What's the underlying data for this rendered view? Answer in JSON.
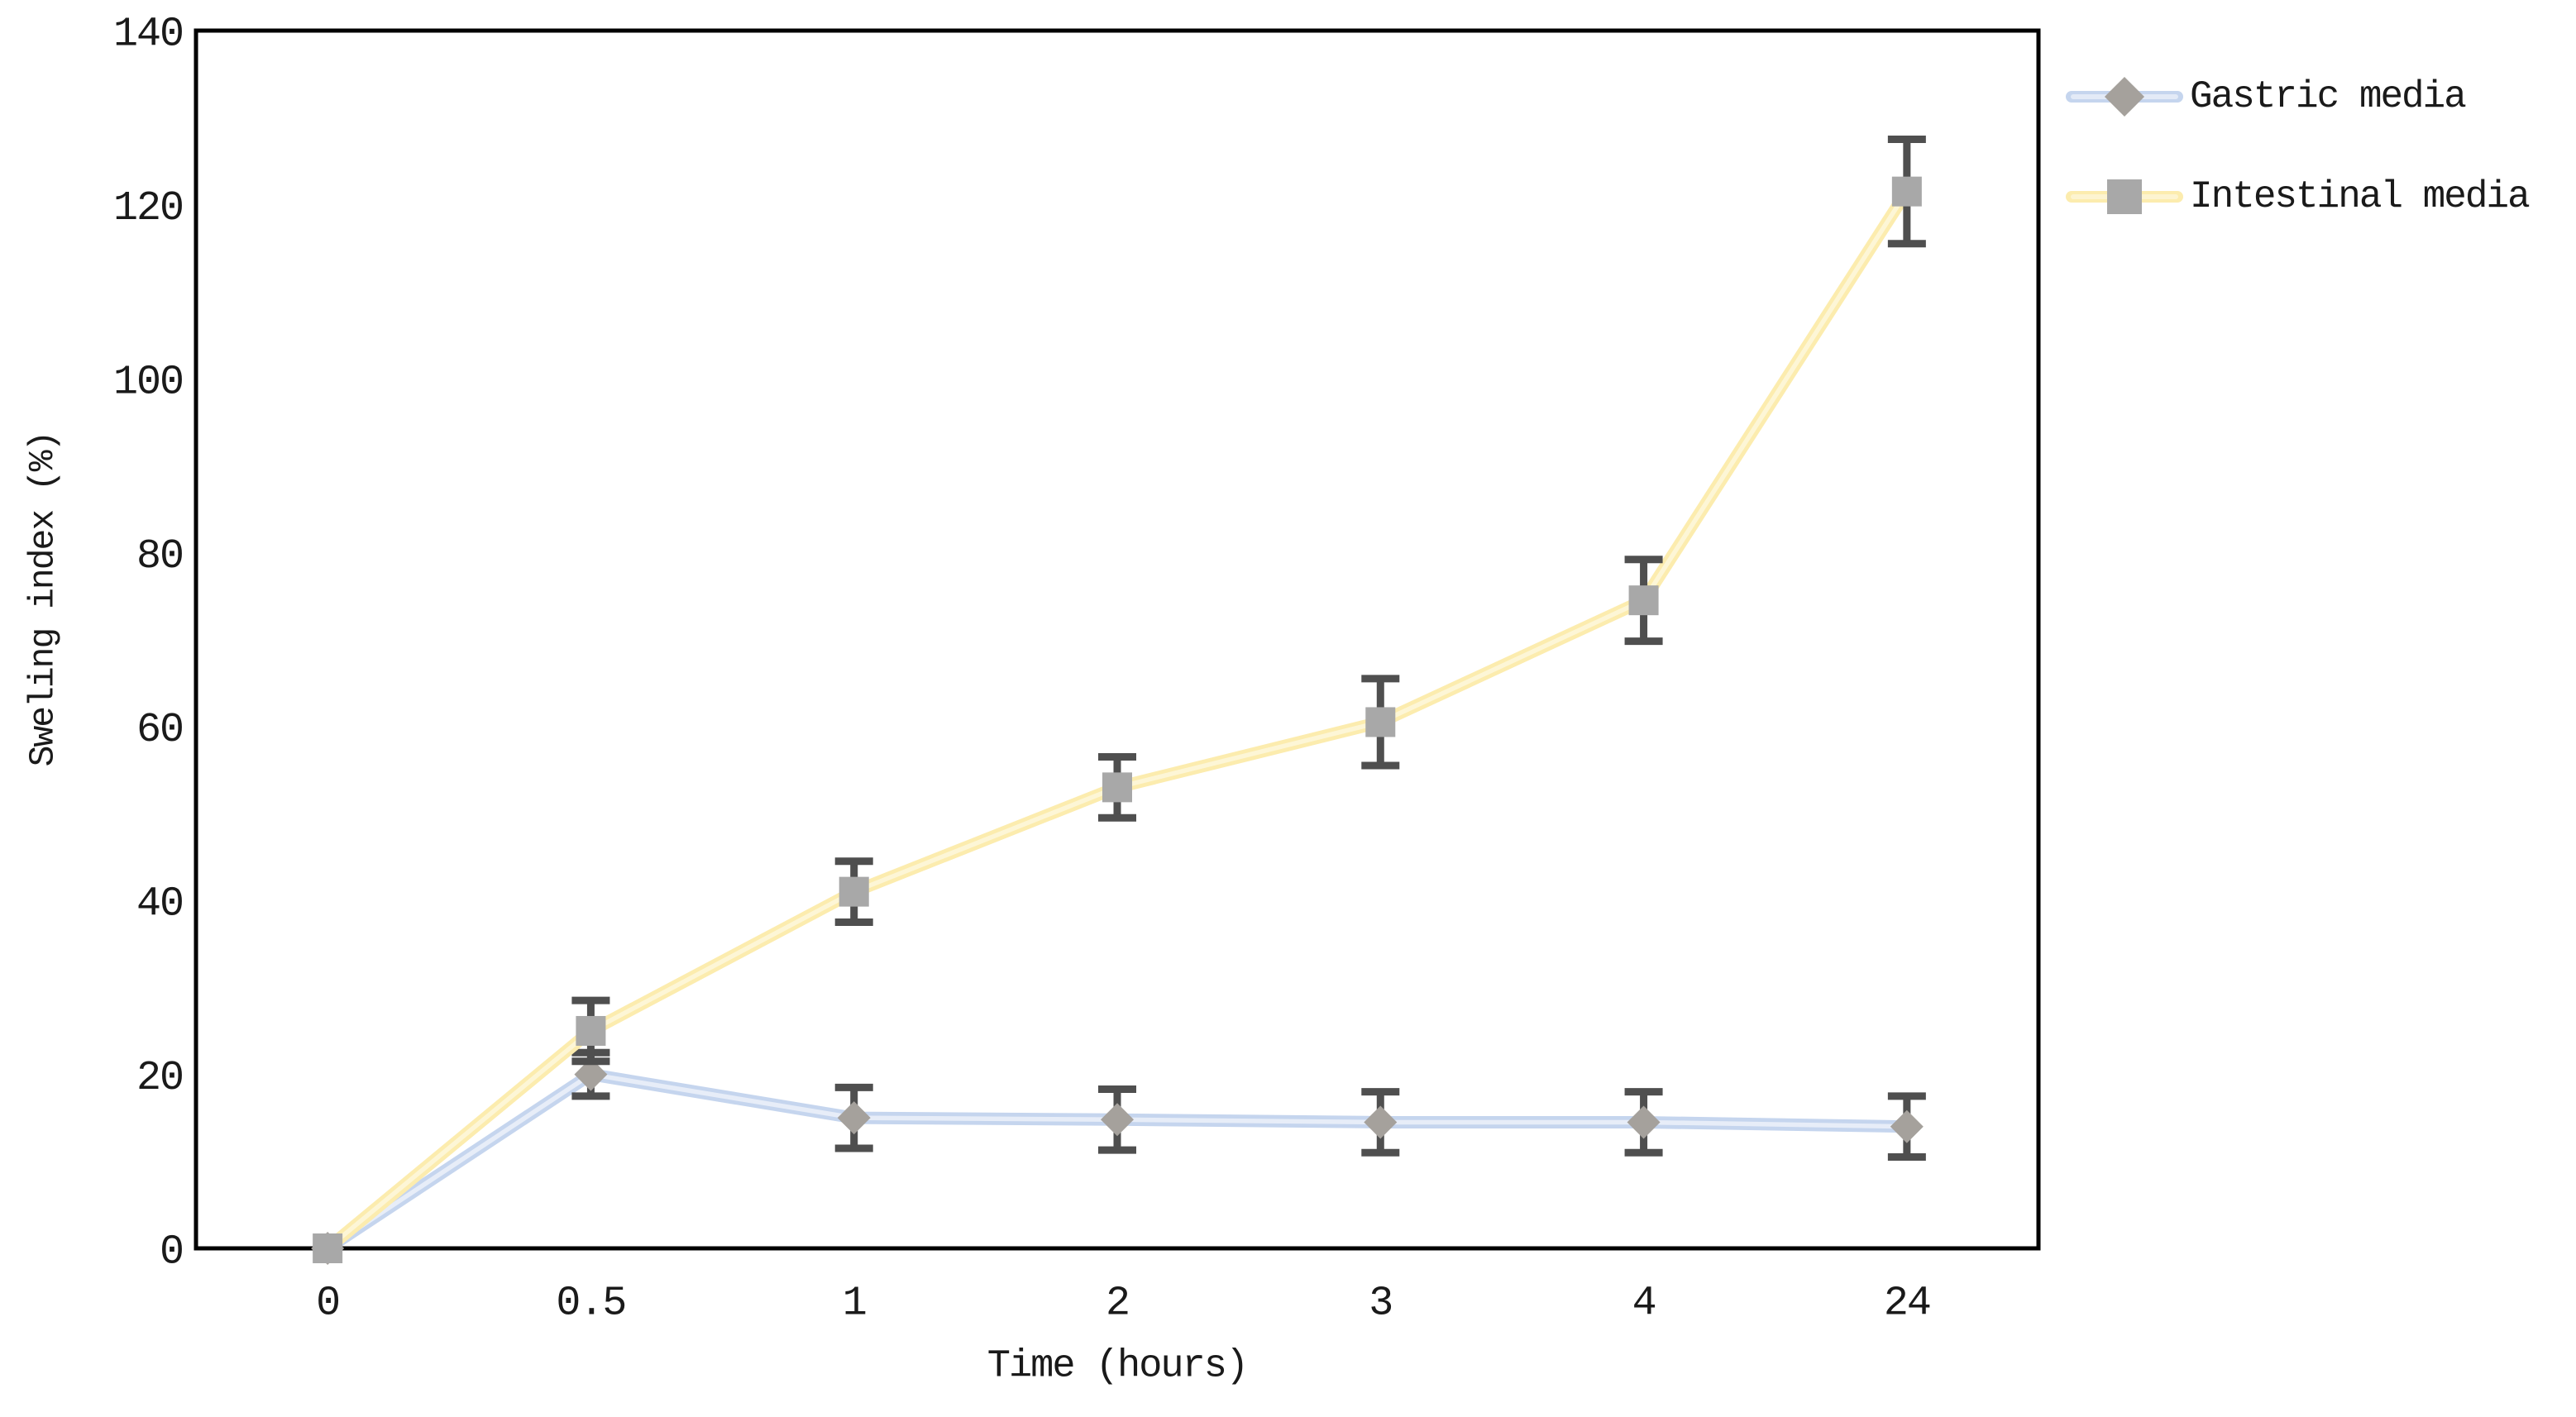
{
  "chart_data": {
    "type": "line",
    "title": "",
    "xlabel": "Time (hours)",
    "ylabel": "Sweling index (%)",
    "categories": [
      "0",
      "0.5",
      "1",
      "2",
      "3",
      "4",
      "24"
    ],
    "y_ticks": [
      0,
      20,
      40,
      60,
      80,
      100,
      120,
      140
    ],
    "ylim": [
      0,
      140
    ],
    "grid": false,
    "legend_position": "right-top",
    "axis_color": "#000000",
    "error_bar_color": "#4f4f4f",
    "series": [
      {
        "name": "Gastric media",
        "marker": "diamond",
        "line_color": "#c5d5ee",
        "line_core_color": "#e7edf8",
        "marker_color": "#a5a19c",
        "values": [
          0,
          20,
          15,
          14.8,
          14.5,
          14.5,
          14
        ],
        "errors": [
          0,
          2.5,
          3.5,
          3.5,
          3.5,
          3.5,
          3.5
        ]
      },
      {
        "name": "Intestinal media",
        "marker": "square",
        "line_color": "#fcecae",
        "line_core_color": "#fdf6d6",
        "marker_color": "#a8a8a8",
        "values": [
          0,
          25,
          41,
          53,
          60.5,
          74.5,
          121.5
        ],
        "errors": [
          0,
          3.5,
          3.5,
          3.5,
          5,
          4.7,
          6
        ]
      }
    ]
  }
}
